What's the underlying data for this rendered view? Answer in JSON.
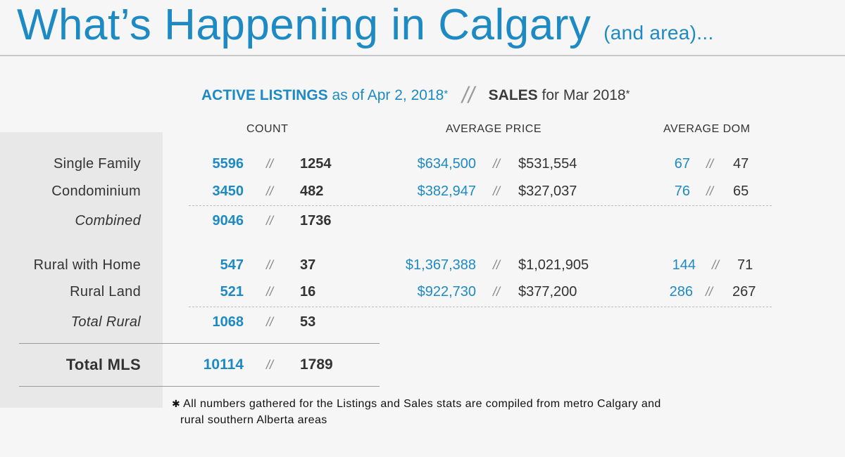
{
  "title": {
    "main": "What’s Happening in Calgary",
    "sub": "(and area)..."
  },
  "subhead": {
    "active_label": "ACTIVE LISTINGS",
    "active_text": "as of Apr 2, 2018",
    "asterisk": "*",
    "divider": "//",
    "sales_label": "SALES",
    "sales_text": "for Mar 2018"
  },
  "columns": {
    "count": "COUNT",
    "avg_price": "AVERAGE PRICE",
    "avg_dom": "AVERAGE DOM"
  },
  "separator": "//",
  "rows": [
    {
      "label": "Single Family",
      "active_count": "5596",
      "sales_count": "1254",
      "active_price": "$634,500",
      "sales_price": "$531,554",
      "active_dom": "67",
      "sales_dom": "47"
    },
    {
      "label": "Condominium",
      "active_count": "3450",
      "sales_count": "482",
      "active_price": "$382,947",
      "sales_price": "$327,037",
      "active_dom": "76",
      "sales_dom": "65"
    },
    {
      "label": "Combined",
      "active_count": "9046",
      "sales_count": "1736"
    },
    {
      "label": "Rural with Home",
      "active_count": "547",
      "sales_count": "37",
      "active_price": "$1,367,388",
      "sales_price": "$1,021,905",
      "active_dom": "144",
      "sales_dom": "71"
    },
    {
      "label": "Rural Land",
      "active_count": "521",
      "sales_count": "16",
      "active_price": "$922,730",
      "sales_price": "$377,200",
      "active_dom": "286",
      "sales_dom": "267"
    },
    {
      "label": "Total Rural",
      "active_count": "1068",
      "sales_count": "53"
    },
    {
      "label": "Total MLS",
      "active_count": "10114",
      "sales_count": "1789"
    }
  ],
  "footnote": {
    "star": "✱",
    "line1": "All numbers gathered for the Listings and Sales stats are compiled from metro Calgary and",
    "line2": "rural southern Alberta areas"
  },
  "colors": {
    "accent": "#1e8ac3",
    "text": "#333333",
    "panel": "#e8e8e8",
    "background": "#f6f6f6"
  }
}
